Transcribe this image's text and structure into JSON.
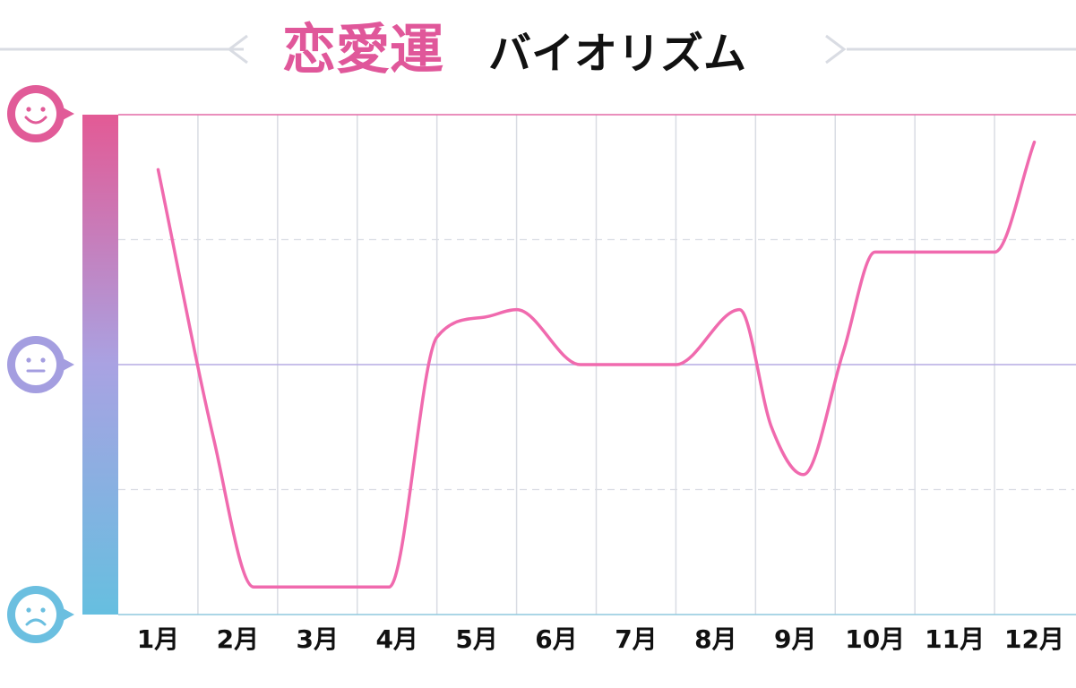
{
  "title": {
    "main": "恋愛運",
    "sub": "バイオリズム"
  },
  "colors": {
    "title_main": "#e0579a",
    "title_sub": "#111111",
    "line": "#f06aae",
    "grid": "#d9dce3",
    "top_line": "#e36aa6",
    "mid_line": "#b6ace3",
    "bottom_line": "#8fc9de",
    "happy": "#e15b98",
    "neutral": "#a49ee0",
    "sad": "#6bbfe0"
  },
  "icons": {
    "top": "happy-face-icon",
    "middle": "neutral-face-icon",
    "bottom": "sad-face-icon"
  },
  "chart_data": {
    "type": "line",
    "categories": [
      "1月",
      "2月",
      "3月",
      "4月",
      "5月",
      "6月",
      "7月",
      "8月",
      "9月",
      "10月",
      "11月",
      "12月"
    ],
    "ylim": [
      -100,
      100
    ],
    "y_gridlines": [
      -50,
      50
    ],
    "series": [
      {
        "x": [
          0.5,
          1.2,
          1.7,
          2.2,
          2.6,
          3.4,
          4.0,
          4.6,
          5.0,
          5.8,
          6.2,
          7.0,
          7.8,
          8.2,
          8.6,
          9.1,
          9.5,
          10.0,
          11.0,
          11.5
        ],
        "y": [
          78,
          -30,
          -89,
          -89,
          -89,
          -89,
          11,
          19,
          22,
          0,
          0,
          0,
          22,
          -25,
          -44,
          5,
          45,
          45,
          45,
          89
        ]
      }
    ]
  }
}
